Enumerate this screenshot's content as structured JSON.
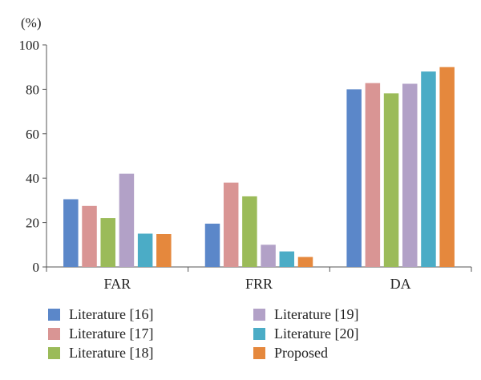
{
  "chart_data": {
    "type": "bar",
    "unit_label": "(%)",
    "categories": [
      "FAR",
      "FRR",
      "DA"
    ],
    "ylim": [
      0,
      100
    ],
    "yticks": [
      0,
      20,
      40,
      60,
      80,
      100
    ],
    "grid": false,
    "legend_position": "bottom",
    "series": [
      {
        "name": "Literature [16]",
        "color": "#5b87c9",
        "values": [
          30.5,
          19.5,
          80
        ]
      },
      {
        "name": "Literature [17]",
        "color": "#d99594",
        "values": [
          27.5,
          38,
          82.8
        ]
      },
      {
        "name": "Literature [18]",
        "color": "#9bbb59",
        "values": [
          22,
          31.8,
          78.2
        ]
      },
      {
        "name": "Literature [19]",
        "color": "#b2a1c7",
        "values": [
          42,
          10,
          82.5
        ]
      },
      {
        "name": "Literature [20]",
        "color": "#4bacc6",
        "values": [
          15,
          7,
          88
        ]
      },
      {
        "name": "Proposed",
        "color": "#e5883d",
        "values": [
          14.8,
          4.5,
          90
        ]
      }
    ]
  }
}
